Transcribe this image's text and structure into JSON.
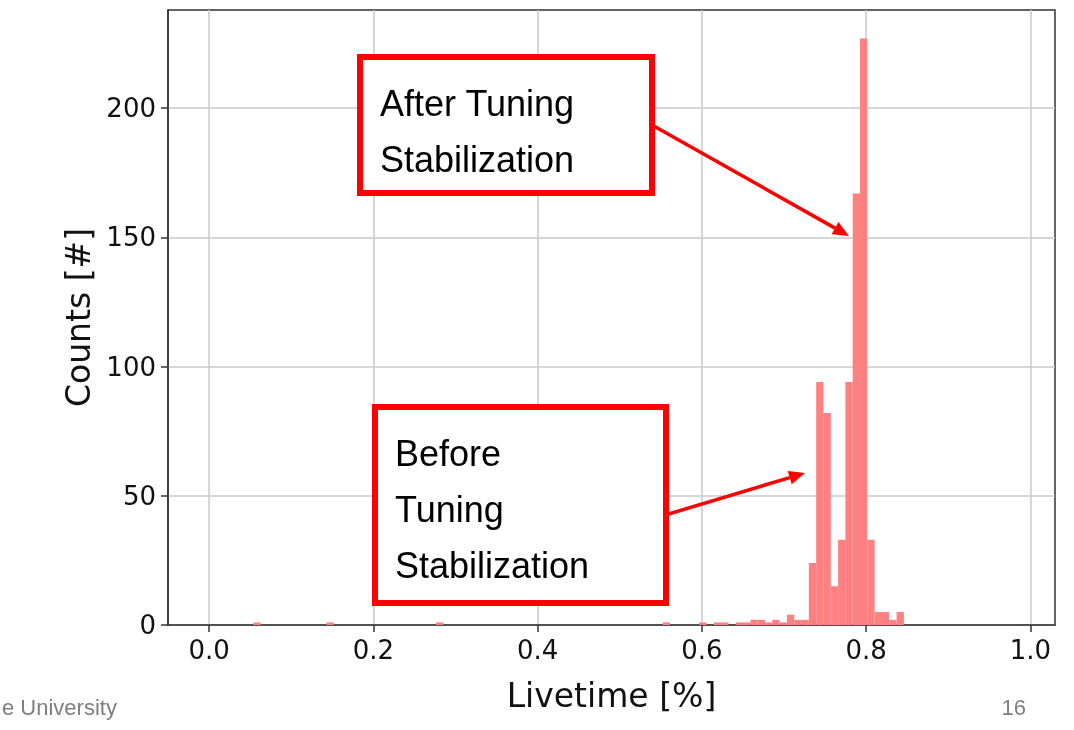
{
  "chart_data": {
    "type": "histogram",
    "xlabel": "Livetime [%]",
    "ylabel": "Counts [#]",
    "color": "#ff8080",
    "bins": [
      0.045,
      0.0539,
      0.0628,
      0.0717,
      0.0806,
      0.0895,
      0.0984,
      0.1073,
      0.1162,
      0.1251,
      0.134,
      0.1429,
      0.1518,
      0.1607,
      0.1696,
      0.1785,
      0.1874,
      0.1963,
      0.2052,
      0.2141,
      0.223,
      0.2319,
      0.2408,
      0.2497,
      0.2586,
      0.2675,
      0.2764,
      0.2853,
      0.2942,
      0.3031,
      0.312,
      0.3209,
      0.3298,
      0.3387,
      0.3476,
      0.3565,
      0.3654,
      0.3743,
      0.3832,
      0.3921,
      0.401,
      0.4099,
      0.4188,
      0.4277,
      0.4366,
      0.4455,
      0.4544,
      0.4633,
      0.4722,
      0.4811,
      0.49,
      0.4989,
      0.5078,
      0.5167,
      0.5256,
      0.5345,
      0.5434,
      0.5523,
      0.5612,
      0.5701,
      0.579,
      0.5879,
      0.5968,
      0.6057,
      0.6146,
      0.6235,
      0.6324,
      0.6413,
      0.6502,
      0.6591,
      0.668,
      0.6769,
      0.6858,
      0.6947,
      0.7036,
      0.7125,
      0.7214,
      0.7303,
      0.7392,
      0.7481,
      0.757,
      0.7659,
      0.7748,
      0.7837,
      0.7926,
      0.8015,
      0.8104,
      0.8193,
      0.8282,
      0.8371,
      0.846
    ],
    "values": [
      0,
      1,
      0,
      0,
      0,
      0,
      0,
      0,
      0,
      0,
      0,
      1,
      0,
      0,
      0,
      0,
      0,
      0,
      0,
      0,
      0,
      0,
      0,
      0,
      0,
      0,
      1,
      0,
      0,
      0,
      0,
      0,
      0,
      0,
      0,
      0,
      0,
      0,
      0,
      0,
      0,
      0,
      0,
      0,
      0,
      0,
      0,
      0,
      0,
      0,
      0,
      0,
      0,
      0,
      0,
      0,
      0,
      1,
      0,
      0,
      0,
      0,
      1,
      0,
      1,
      1,
      0,
      1,
      1,
      2,
      2,
      1,
      2,
      1,
      4,
      2,
      2,
      24,
      94,
      82,
      15,
      33,
      94,
      167,
      227,
      33,
      5,
      5,
      2,
      5
    ],
    "xlim": [
      -0.05,
      1.03
    ],
    "ylim": [
      0,
      238
    ],
    "xticks": [
      {
        "value": 0,
        "label": "0.0"
      },
      {
        "value": 0.2,
        "label": "0.2"
      },
      {
        "value": 0.4,
        "label": "0.4"
      },
      {
        "value": 0.6,
        "label": "0.6"
      },
      {
        "value": 0.8,
        "label": "0.8"
      },
      {
        "value": 1,
        "label": "1.0"
      }
    ],
    "yticks": [
      0,
      50,
      100,
      150,
      200
    ],
    "grid": true,
    "annotations": [
      "After Tuning Stabilization",
      "Before Tuning Stabilization",
      "e University",
      "16"
    ]
  }
}
